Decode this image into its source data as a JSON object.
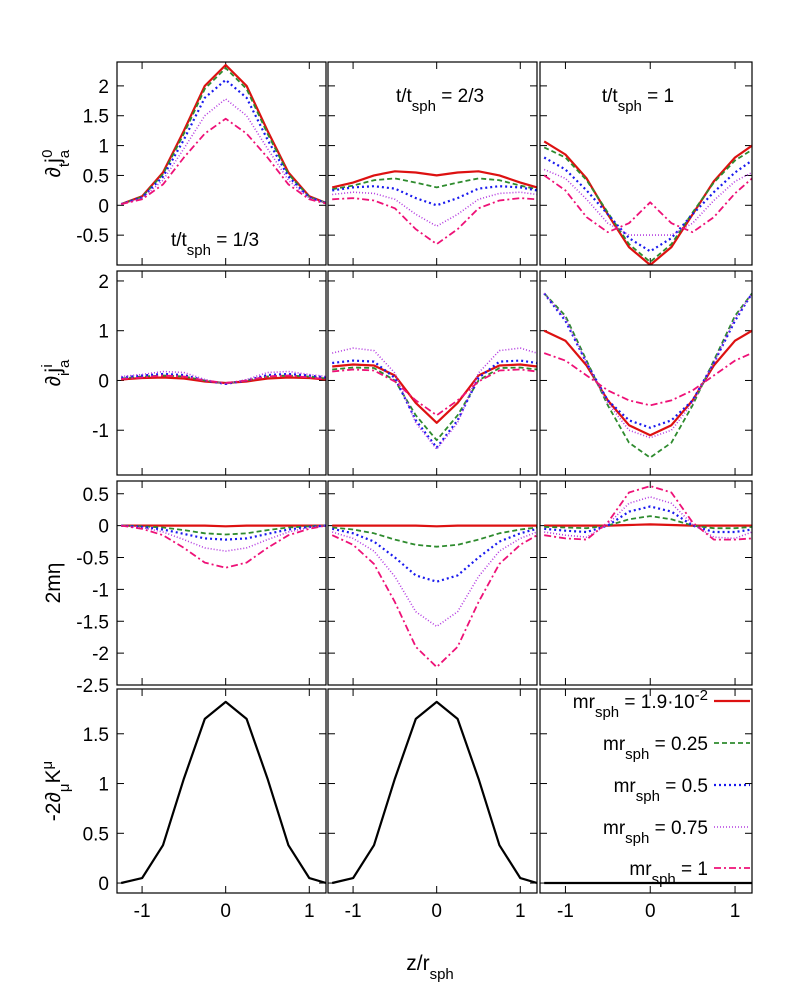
{
  "chart_data": {
    "type": "line",
    "xlabel": {
      "main": "z/r",
      "sub": "sph"
    },
    "xlim": [
      -1.3,
      1.2
    ],
    "xticks": [
      -1,
      0,
      1
    ],
    "x": [
      -1.25,
      -1.0,
      -0.75,
      -0.5,
      -0.25,
      0.0,
      0.25,
      0.5,
      0.75,
      1.0,
      1.2
    ],
    "series_styles": [
      {
        "name": "mr_sph = 1.9·10^-2",
        "color": "#dd1111",
        "dash": "",
        "width": 2.2
      },
      {
        "name": "mr_sph = 0.25",
        "color": "#2e8b2e",
        "dash": "5,3",
        "width": 1.8
      },
      {
        "name": "mr_sph = 0.5",
        "color": "#1a1aee",
        "dash": "2,3",
        "width": 2.2
      },
      {
        "name": "mr_sph = 0.75",
        "color": "#b43ce0",
        "dash": "1,2",
        "width": 1.6
      },
      {
        "name": "mr_sph = 1",
        "color": "#ee1177",
        "dash": "7,3,2,3",
        "width": 1.8
      }
    ],
    "legend": {
      "position": "bottom-right panel",
      "entries": [
        {
          "label": "mr",
          "sub": "sph",
          "sup": "",
          "value": " = 1.9·10",
          "exp": "-2"
        },
        {
          "label": "mr",
          "sub": "sph",
          "sup": "",
          "value": " = 0.25",
          "exp": ""
        },
        {
          "label": "mr",
          "sub": "sph",
          "sup": "",
          "value": " = 0.5",
          "exp": ""
        },
        {
          "label": "mr",
          "sub": "sph",
          "sup": "",
          "value": " = 0.75",
          "exp": ""
        },
        {
          "label": "mr",
          "sub": "sph",
          "sup": "",
          "value": " = 1",
          "exp": ""
        }
      ]
    },
    "columns": [
      {
        "annotation": {
          "main": "t/t",
          "sub": "sph",
          "rest": " = 1/3"
        }
      },
      {
        "annotation": {
          "main": "t/t",
          "sub": "sph",
          "rest": " = 2/3"
        }
      },
      {
        "annotation": {
          "main": "t/t",
          "sub": "sph",
          "rest": " = 1"
        }
      }
    ],
    "rows": [
      {
        "ylabel": {
          "pre": "∂",
          "pre_sub": "t",
          "main": "j",
          "sub": "a",
          "sup": "0"
        },
        "ylim": [
          -1.0,
          2.4
        ],
        "yticks": [
          -0.5,
          0,
          0.5,
          1,
          1.5,
          2
        ],
        "ytick_labels": [
          "-0.5",
          "0",
          "0.5",
          "1",
          "1.5",
          "2"
        ],
        "panels": [
          {
            "series": [
              [
                0.02,
                0.15,
                0.55,
                1.25,
                2.0,
                2.35,
                2.0,
                1.25,
                0.55,
                0.15,
                0.04
              ],
              [
                0.02,
                0.14,
                0.52,
                1.2,
                1.95,
                2.3,
                1.95,
                1.2,
                0.52,
                0.14,
                0.04
              ],
              [
                0.02,
                0.13,
                0.48,
                1.1,
                1.8,
                2.1,
                1.8,
                1.1,
                0.48,
                0.13,
                0.04
              ],
              [
                0.02,
                0.12,
                0.42,
                0.95,
                1.5,
                1.78,
                1.5,
                0.95,
                0.42,
                0.12,
                0.04
              ],
              [
                0.02,
                0.1,
                0.35,
                0.8,
                1.2,
                1.45,
                1.2,
                0.8,
                0.35,
                0.1,
                0.03
              ]
            ]
          },
          {
            "series": [
              [
                0.3,
                0.38,
                0.5,
                0.57,
                0.55,
                0.5,
                0.55,
                0.57,
                0.5,
                0.38,
                0.3
              ],
              [
                0.27,
                0.33,
                0.42,
                0.45,
                0.38,
                0.3,
                0.38,
                0.45,
                0.42,
                0.33,
                0.27
              ],
              [
                0.25,
                0.3,
                0.32,
                0.28,
                0.12,
                0.0,
                0.12,
                0.28,
                0.32,
                0.3,
                0.25
              ],
              [
                0.18,
                0.22,
                0.2,
                0.1,
                -0.15,
                -0.35,
                -0.15,
                0.1,
                0.2,
                0.22,
                0.18
              ],
              [
                0.1,
                0.12,
                0.08,
                -0.05,
                -0.4,
                -0.65,
                -0.4,
                -0.05,
                0.08,
                0.12,
                0.1
              ]
            ]
          },
          {
            "series": [
              [
                1.07,
                0.85,
                0.45,
                -0.15,
                -0.7,
                -1.0,
                -0.7,
                -0.15,
                0.4,
                0.8,
                1.0
              ],
              [
                0.97,
                0.8,
                0.42,
                -0.12,
                -0.65,
                -0.95,
                -0.65,
                -0.12,
                0.38,
                0.75,
                0.93
              ],
              [
                0.8,
                0.6,
                0.25,
                -0.15,
                -0.55,
                -0.77,
                -0.55,
                -0.15,
                0.22,
                0.55,
                0.75
              ],
              [
                0.6,
                0.45,
                0.1,
                -0.3,
                -0.5,
                -0.5,
                -0.5,
                -0.3,
                0.08,
                0.4,
                0.55
              ],
              [
                0.5,
                0.25,
                -0.2,
                -0.45,
                -0.3,
                0.05,
                -0.3,
                -0.45,
                -0.2,
                0.2,
                0.45
              ]
            ]
          }
        ]
      },
      {
        "ylabel": {
          "pre": "∂",
          "pre_sub": "i",
          "main": "j",
          "sub": "a",
          "sup": "i"
        },
        "ylim": [
          -1.9,
          2.2
        ],
        "yticks": [
          -1,
          0,
          1,
          2
        ],
        "ytick_labels": [
          "-1",
          "0",
          "1",
          "2"
        ],
        "panels": [
          {
            "series": [
              [
                0.02,
                0.05,
                0.06,
                0.04,
                -0.02,
                -0.05,
                -0.02,
                0.04,
                0.06,
                0.05,
                0.02
              ],
              [
                0.04,
                0.08,
                0.1,
                0.08,
                0.0,
                -0.06,
                0.0,
                0.08,
                0.1,
                0.08,
                0.04
              ],
              [
                0.06,
                0.1,
                0.13,
                0.11,
                0.0,
                -0.07,
                0.0,
                0.11,
                0.13,
                0.1,
                0.06
              ],
              [
                0.08,
                0.12,
                0.18,
                0.16,
                0.02,
                -0.07,
                0.02,
                0.16,
                0.18,
                0.12,
                0.08
              ],
              [
                0.03,
                0.06,
                0.1,
                0.08,
                0.0,
                -0.05,
                0.0,
                0.08,
                0.1,
                0.06,
                0.03
              ]
            ]
          },
          {
            "series": [
              [
                0.28,
                0.32,
                0.3,
                0.1,
                -0.45,
                -0.85,
                -0.45,
                0.1,
                0.3,
                0.32,
                0.28
              ],
              [
                0.22,
                0.26,
                0.25,
                0.0,
                -0.7,
                -1.2,
                -0.7,
                0.0,
                0.25,
                0.26,
                0.22
              ],
              [
                0.35,
                0.4,
                0.38,
                0.05,
                -0.8,
                -1.35,
                -0.8,
                0.05,
                0.38,
                0.4,
                0.35
              ],
              [
                0.55,
                0.65,
                0.6,
                0.15,
                -0.85,
                -1.38,
                -0.85,
                0.15,
                0.6,
                0.65,
                0.55
              ],
              [
                0.18,
                0.22,
                0.2,
                -0.02,
                -0.4,
                -0.7,
                -0.4,
                -0.02,
                0.2,
                0.22,
                0.18
              ]
            ]
          },
          {
            "series": [
              [
                1.0,
                0.8,
                0.3,
                -0.4,
                -0.9,
                -1.1,
                -0.9,
                -0.4,
                0.3,
                0.8,
                1.0
              ],
              [
                1.75,
                1.3,
                0.4,
                -0.5,
                -1.25,
                -1.55,
                -1.25,
                -0.5,
                0.4,
                1.3,
                1.75
              ],
              [
                1.75,
                1.2,
                0.35,
                -0.4,
                -0.8,
                -0.95,
                -0.8,
                -0.4,
                0.35,
                1.2,
                1.75
              ],
              [
                1.75,
                1.25,
                0.35,
                -0.45,
                -1.0,
                -1.15,
                -1.0,
                -0.45,
                0.35,
                1.25,
                1.75
              ],
              [
                0.55,
                0.4,
                0.1,
                -0.2,
                -0.4,
                -0.5,
                -0.4,
                -0.2,
                0.1,
                0.4,
                0.55
              ]
            ]
          }
        ]
      },
      {
        "ylabel": {
          "pre": "",
          "pre_sub": "",
          "main": "2mη",
          "sub": "",
          "sup": ""
        },
        "ylim": [
          -2.5,
          0.7
        ],
        "yticks": [
          -2.5,
          -2,
          -1.5,
          -1,
          -0.5,
          0,
          0.5
        ],
        "ytick_labels": [
          "-2.5",
          "-2",
          "-1.5",
          "-1",
          "-0.5",
          "0",
          "0.5"
        ],
        "panels": [
          {
            "series": [
              [
                0,
                0,
                0,
                0,
                0,
                -0.01,
                0,
                0,
                0,
                0,
                0
              ],
              [
                0,
                -0.01,
                -0.03,
                -0.07,
                -0.12,
                -0.14,
                -0.12,
                -0.07,
                -0.03,
                -0.01,
                0
              ],
              [
                0,
                -0.02,
                -0.06,
                -0.13,
                -0.2,
                -0.22,
                -0.2,
                -0.13,
                -0.06,
                -0.02,
                0
              ],
              [
                0,
                -0.03,
                -0.1,
                -0.22,
                -0.35,
                -0.4,
                -0.35,
                -0.22,
                -0.1,
                -0.03,
                0
              ],
              [
                0,
                -0.05,
                -0.15,
                -0.35,
                -0.58,
                -0.66,
                -0.58,
                -0.35,
                -0.15,
                -0.05,
                0
              ]
            ]
          },
          {
            "series": [
              [
                0,
                0,
                0,
                0,
                0,
                -0.01,
                0,
                0,
                0,
                0,
                0
              ],
              [
                -0.03,
                -0.06,
                -0.12,
                -0.22,
                -0.3,
                -0.33,
                -0.3,
                -0.22,
                -0.12,
                -0.06,
                -0.03
              ],
              [
                -0.05,
                -0.12,
                -0.25,
                -0.5,
                -0.78,
                -0.88,
                -0.78,
                -0.5,
                -0.25,
                -0.12,
                -0.05
              ],
              [
                -0.1,
                -0.2,
                -0.4,
                -0.8,
                -1.35,
                -1.58,
                -1.35,
                -0.8,
                -0.4,
                -0.2,
                -0.1
              ],
              [
                -0.15,
                -0.3,
                -0.6,
                -1.2,
                -1.9,
                -2.22,
                -1.9,
                -1.2,
                -0.6,
                -0.3,
                -0.15
              ]
            ]
          },
          {
            "series": [
              [
                0,
                0,
                0,
                0,
                0.01,
                0.02,
                0.01,
                0,
                0,
                0,
                0
              ],
              [
                -0.02,
                -0.03,
                -0.04,
                0.0,
                0.1,
                0.15,
                0.1,
                0.0,
                -0.04,
                -0.04,
                -0.02
              ],
              [
                -0.05,
                -0.08,
                -0.1,
                0.0,
                0.22,
                0.3,
                0.22,
                0.0,
                -0.1,
                -0.1,
                -0.06
              ],
              [
                -0.1,
                -0.15,
                -0.18,
                0.02,
                0.35,
                0.45,
                0.35,
                0.02,
                -0.18,
                -0.2,
                -0.1
              ],
              [
                -0.15,
                -0.2,
                -0.22,
                0.05,
                0.52,
                0.62,
                0.52,
                0.05,
                -0.22,
                -0.22,
                -0.2
              ]
            ]
          }
        ]
      },
      {
        "ylabel": {
          "pre": "-2∂",
          "pre_sub": "μ",
          "main": "K",
          "sub": "",
          "sup": "μ"
        },
        "ylim": [
          -0.1,
          1.95
        ],
        "yticks": [
          0,
          0.5,
          1,
          1.5
        ],
        "ytick_labels": [
          "0",
          "0.5",
          "1",
          "1.5"
        ],
        "panels": [
          {
            "series": [
              [
                0.0,
                0.05,
                0.38,
                1.05,
                1.65,
                1.82,
                1.65,
                1.05,
                0.38,
                0.05,
                0.0
              ]
            ]
          },
          {
            "series": [
              [
                0.0,
                0.05,
                0.38,
                1.05,
                1.65,
                1.82,
                1.65,
                1.05,
                0.38,
                0.05,
                0.0
              ]
            ]
          },
          {
            "series": [
              [
                0,
                0,
                0,
                0,
                0,
                0,
                0,
                0,
                0,
                0,
                0
              ]
            ]
          }
        ]
      }
    ]
  }
}
